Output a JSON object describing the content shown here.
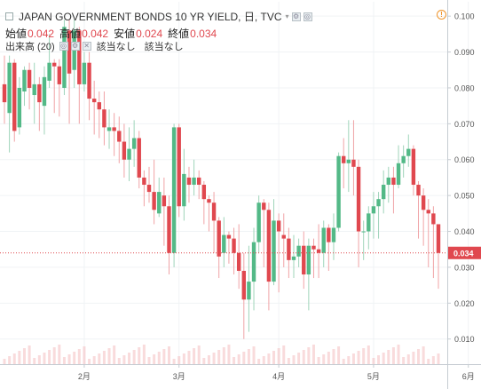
{
  "header": {
    "title": "JAPAN GOVERNMENT BONDS 10 YR YIELD, 日, TVC",
    "ohlc": [
      {
        "label": "始値",
        "value": "0.042"
      },
      {
        "label": "高値",
        "value": "0.042"
      },
      {
        "label": "安値",
        "value": "0.024"
      },
      {
        "label": "終値",
        "value": "0.034"
      }
    ],
    "volume_label": "出来高 (20)",
    "na1": "該当なし",
    "na2": "該当なし",
    "warning_glyph": "!"
  },
  "colors": {
    "up": "#53b987",
    "down": "#e0484f",
    "price_line": "#e0484f",
    "grid": "#f0f3f5",
    "volume": "#f4b8ba"
  },
  "chart_data": {
    "type": "candlestick",
    "title": "JAPAN GOVERNMENT BONDS 10 YR YIELD, 日, TVC",
    "x_ticks": [
      "2月",
      "3月",
      "4月",
      "5月",
      "6月"
    ],
    "x_tick_index": [
      16,
      35,
      55,
      74,
      93
    ],
    "ylim": [
      0.003,
      0.104
    ],
    "y_ticks": [
      "0.100",
      "0.090",
      "0.080",
      "0.070",
      "0.060",
      "0.050",
      "0.040",
      "0.030",
      "0.020",
      "0.010"
    ],
    "y_tick_values": [
      0.1,
      0.09,
      0.08,
      0.07,
      0.06,
      0.05,
      0.04,
      0.03,
      0.02,
      0.01
    ],
    "last_price": 0.034,
    "last_price_label": "0.034",
    "candles": [
      [
        0.081,
        0.076,
        0.089,
        0.07
      ],
      [
        0.073,
        0.087,
        0.089,
        0.062
      ],
      [
        0.087,
        0.068,
        0.088,
        0.065
      ],
      [
        0.069,
        0.08,
        0.083,
        0.067
      ],
      [
        0.079,
        0.085,
        0.086,
        0.075
      ],
      [
        0.085,
        0.08,
        0.087,
        0.074
      ],
      [
        0.078,
        0.081,
        0.087,
        0.07
      ],
      [
        0.081,
        0.076,
        0.083,
        0.068
      ],
      [
        0.075,
        0.083,
        0.086,
        0.067
      ],
      [
        0.082,
        0.087,
        0.095,
        0.08
      ],
      [
        0.087,
        0.086,
        0.088,
        0.073
      ],
      [
        0.086,
        0.081,
        0.088,
        0.072
      ],
      [
        0.08,
        0.097,
        0.099,
        0.078
      ],
      [
        0.096,
        0.084,
        0.099,
        0.07
      ],
      [
        0.085,
        0.096,
        0.099,
        0.08
      ],
      [
        0.096,
        0.081,
        0.097,
        0.07
      ],
      [
        0.081,
        0.087,
        0.09,
        0.079
      ],
      [
        0.087,
        0.077,
        0.09,
        0.071
      ],
      [
        0.077,
        0.076,
        0.082,
        0.067
      ],
      [
        0.076,
        0.074,
        0.079,
        0.066
      ],
      [
        0.074,
        0.069,
        0.079,
        0.064
      ],
      [
        0.068,
        0.069,
        0.074,
        0.063
      ],
      [
        0.069,
        0.068,
        0.073,
        0.061
      ],
      [
        0.068,
        0.065,
        0.072,
        0.059
      ],
      [
        0.065,
        0.06,
        0.07,
        0.055
      ],
      [
        0.06,
        0.063,
        0.069,
        0.054
      ],
      [
        0.063,
        0.066,
        0.071,
        0.058
      ],
      [
        0.066,
        0.055,
        0.068,
        0.052
      ],
      [
        0.055,
        0.053,
        0.057,
        0.047
      ],
      [
        0.053,
        0.051,
        0.058,
        0.048
      ],
      [
        0.051,
        0.046,
        0.06,
        0.042
      ],
      [
        0.045,
        0.051,
        0.055,
        0.044
      ],
      [
        0.05,
        0.047,
        0.055,
        0.036
      ],
      [
        0.047,
        0.034,
        0.05,
        0.028
      ],
      [
        0.034,
        0.069,
        0.07,
        0.03
      ],
      [
        0.069,
        0.047,
        0.07,
        0.044
      ],
      [
        0.047,
        0.056,
        0.063,
        0.043
      ],
      [
        0.055,
        0.053,
        0.058,
        0.048
      ],
      [
        0.053,
        0.055,
        0.06,
        0.05
      ],
      [
        0.055,
        0.053,
        0.057,
        0.049
      ],
      [
        0.053,
        0.049,
        0.054,
        0.042
      ],
      [
        0.049,
        0.048,
        0.05,
        0.04
      ],
      [
        0.048,
        0.043,
        0.051,
        0.034
      ],
      [
        0.043,
        0.033,
        0.044,
        0.027
      ],
      [
        0.034,
        0.039,
        0.044,
        0.03
      ],
      [
        0.039,
        0.038,
        0.04,
        0.031
      ],
      [
        0.038,
        0.034,
        0.041,
        0.028
      ],
      [
        0.034,
        0.029,
        0.042,
        0.024
      ],
      [
        0.029,
        0.021,
        0.034,
        0.01
      ],
      [
        0.021,
        0.026,
        0.036,
        0.012
      ],
      [
        0.026,
        0.037,
        0.041,
        0.018
      ],
      [
        0.037,
        0.048,
        0.05,
        0.034
      ],
      [
        0.048,
        0.046,
        0.049,
        0.03
      ],
      [
        0.046,
        0.026,
        0.048,
        0.018
      ],
      [
        0.026,
        0.043,
        0.049,
        0.025
      ],
      [
        0.043,
        0.04,
        0.045,
        0.023
      ],
      [
        0.039,
        0.038,
        0.045,
        0.03
      ],
      [
        0.038,
        0.032,
        0.041,
        0.027
      ],
      [
        0.032,
        0.033,
        0.039,
        0.027
      ],
      [
        0.033,
        0.036,
        0.038,
        0.03
      ],
      [
        0.036,
        0.028,
        0.04,
        0.024
      ],
      [
        0.028,
        0.036,
        0.038,
        0.018
      ],
      [
        0.036,
        0.035,
        0.038,
        0.027
      ],
      [
        0.035,
        0.034,
        0.042,
        0.027
      ],
      [
        0.034,
        0.041,
        0.043,
        0.03
      ],
      [
        0.041,
        0.037,
        0.042,
        0.029
      ],
      [
        0.037,
        0.041,
        0.045,
        0.032
      ],
      [
        0.041,
        0.061,
        0.062,
        0.04
      ],
      [
        0.061,
        0.059,
        0.066,
        0.052
      ],
      [
        0.059,
        0.06,
        0.071,
        0.051
      ],
      [
        0.06,
        0.058,
        0.071,
        0.05
      ],
      [
        0.058,
        0.04,
        0.06,
        0.03
      ],
      [
        0.04,
        0.04,
        0.043,
        0.032
      ],
      [
        0.04,
        0.045,
        0.047,
        0.035
      ],
      [
        0.045,
        0.047,
        0.051,
        0.038
      ],
      [
        0.047,
        0.049,
        0.051,
        0.038
      ],
      [
        0.049,
        0.053,
        0.057,
        0.045
      ],
      [
        0.053,
        0.055,
        0.058,
        0.048
      ],
      [
        0.055,
        0.053,
        0.058,
        0.045
      ],
      [
        0.053,
        0.059,
        0.064,
        0.052
      ],
      [
        0.059,
        0.061,
        0.064,
        0.055
      ],
      [
        0.061,
        0.063,
        0.067,
        0.058
      ],
      [
        0.063,
        0.053,
        0.064,
        0.05
      ],
      [
        0.053,
        0.05,
        0.054,
        0.038
      ],
      [
        0.05,
        0.046,
        0.052,
        0.036
      ],
      [
        0.046,
        0.045,
        0.049,
        0.03
      ],
      [
        0.045,
        0.042,
        0.047,
        0.027
      ],
      [
        0.042,
        0.034,
        0.042,
        0.024
      ]
    ]
  }
}
